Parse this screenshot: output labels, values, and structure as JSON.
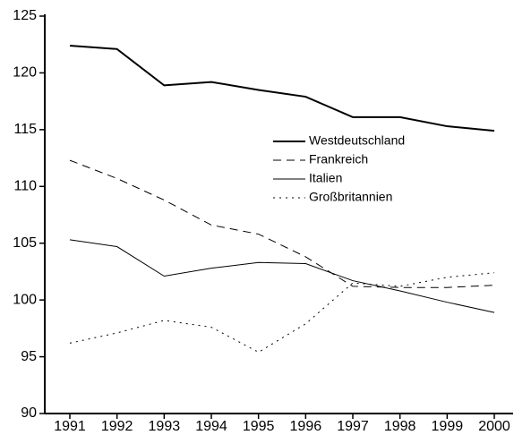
{
  "chart_data": {
    "type": "line",
    "categories": [
      "1991",
      "1992",
      "1993",
      "1994",
      "1995",
      "1996",
      "1997",
      "1998",
      "1999",
      "2000"
    ],
    "series": [
      {
        "name": "Westdeutschland",
        "color": "#000000",
        "dash": "solid",
        "width": 2,
        "values": [
          122.4,
          122.1,
          118.9,
          119.2,
          118.5,
          117.9,
          116.1,
          116.1,
          115.3,
          114.9
        ]
      },
      {
        "name": "Frankreich",
        "color": "#000000",
        "dash": "dashed",
        "width": 1,
        "values": [
          112.3,
          110.7,
          108.8,
          106.6,
          105.8,
          103.8,
          101.2,
          101.1,
          101.1,
          101.3
        ]
      },
      {
        "name": "Italien",
        "color": "#000000",
        "dash": "solid",
        "width": 1,
        "values": [
          105.3,
          104.7,
          102.1,
          102.8,
          103.3,
          103.2,
          101.7,
          100.8,
          99.8,
          98.9
        ]
      },
      {
        "name": "Großbritannien",
        "color": "#000000",
        "dash": "dotted",
        "width": 1,
        "values": [
          96.2,
          97.1,
          98.2,
          97.6,
          95.4,
          97.9,
          101.5,
          101.2,
          102.0,
          102.4
        ]
      }
    ],
    "ylim": [
      90,
      125
    ],
    "yticks": [
      90,
      95,
      100,
      105,
      110,
      115,
      120,
      125
    ],
    "grid": false,
    "legend": "center right"
  }
}
